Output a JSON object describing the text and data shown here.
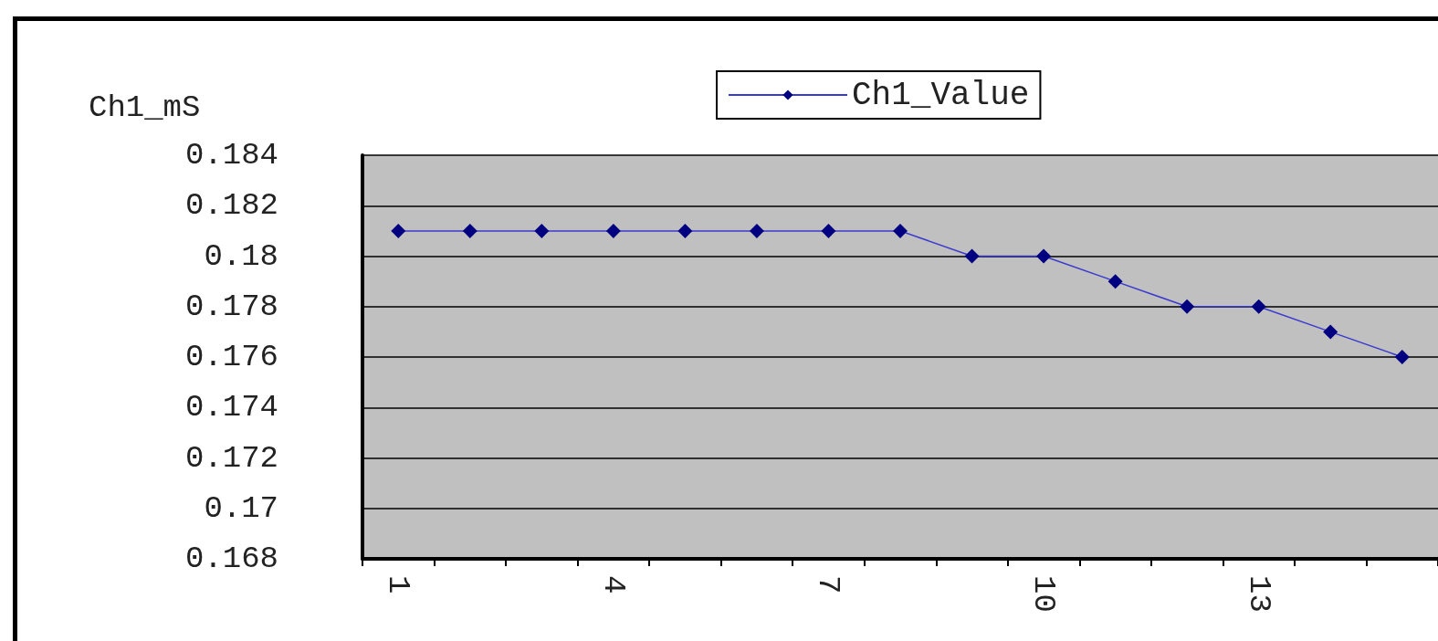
{
  "chart_data": {
    "type": "line",
    "ylabel": "Ch1_mS",
    "categories": [
      "1",
      null,
      null,
      "4",
      null,
      null,
      "7",
      null,
      null,
      "10",
      null,
      null,
      "13",
      null,
      null
    ],
    "series": [
      {
        "name": "Ch1_Value",
        "color": "#000080",
        "values": [
          0.181,
          0.181,
          0.181,
          0.181,
          0.181,
          0.181,
          0.181,
          0.181,
          0.18,
          0.18,
          0.179,
          0.178,
          0.178,
          0.177,
          0.176
        ]
      }
    ],
    "ylim": [
      0.168,
      0.184
    ],
    "yticks": [
      0.168,
      0.17,
      0.172,
      0.174,
      0.176,
      0.178,
      0.18,
      0.182,
      0.184
    ],
    "grid": "y",
    "legend": "top",
    "marker": "diamond",
    "line_style": "solid"
  }
}
